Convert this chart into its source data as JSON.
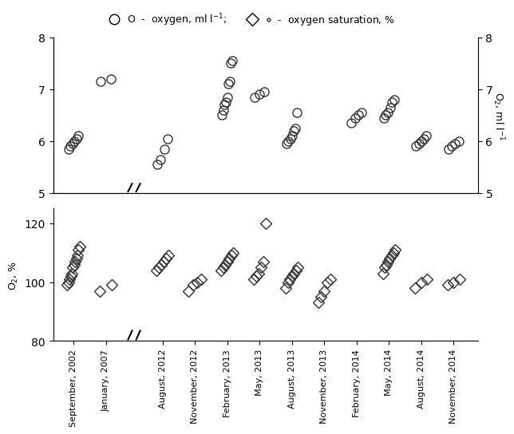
{
  "categories": [
    "September, 2002",
    "January, 2007",
    "August, 2012",
    "November, 2012",
    "February, 2013",
    "May, 2013",
    "August, 2013",
    "November, 2013",
    "February, 2014",
    "May, 2014",
    "August, 2014",
    "November, 2014"
  ],
  "x_positions": [
    0,
    1,
    2,
    3,
    4,
    5,
    6,
    7,
    8,
    9,
    10,
    11
  ],
  "oxygen_data": {
    "September, 2002": [
      5.85,
      5.9,
      5.95,
      6.0,
      6.05,
      6.1
    ],
    "January, 2007": [
      7.15,
      7.2
    ],
    "August, 2012": [
      5.55,
      5.65,
      5.85,
      6.05
    ],
    "November, 2012": [],
    "February, 2013": [
      6.5,
      6.6,
      6.7,
      6.75,
      6.85,
      7.1,
      7.15,
      7.5,
      7.55
    ],
    "May, 2013": [
      6.85,
      6.9,
      6.95
    ],
    "August, 2013": [
      5.95,
      6.0,
      6.05,
      6.1,
      6.2,
      6.25,
      6.55
    ],
    "November, 2013": [],
    "February, 2014": [
      6.35,
      6.45,
      6.5,
      6.55
    ],
    "May, 2014": [
      6.45,
      6.5,
      6.55,
      6.65,
      6.75,
      6.8
    ],
    "August, 2014": [
      5.9,
      5.95,
      6.0,
      6.05,
      6.1
    ],
    "November, 2014": [
      5.85,
      5.9,
      5.95,
      6.0
    ]
  },
  "saturation_data": {
    "September, 2002": [
      99,
      100,
      101,
      102,
      103,
      105,
      106,
      107,
      108,
      109,
      111,
      112
    ],
    "January, 2007": [
      97,
      99
    ],
    "August, 2012": [
      104,
      105,
      106,
      107,
      108,
      109
    ],
    "November, 2012": [
      97,
      99,
      100,
      101
    ],
    "February, 2013": [
      104,
      105,
      106,
      107,
      108,
      109,
      110
    ],
    "May, 2013": [
      101,
      102,
      103,
      105,
      107,
      120
    ],
    "August, 2013": [
      98,
      100,
      101,
      102,
      103,
      104,
      105
    ],
    "November, 2013": [
      93,
      95,
      97,
      100,
      101
    ],
    "February, 2014": [],
    "May, 2014": [
      103,
      105,
      106,
      107,
      108,
      109,
      110,
      111
    ],
    "August, 2014": [
      98,
      100,
      101
    ],
    "November, 2014": [
      99,
      100,
      101
    ]
  },
  "ylim_oxygen": [
    5.0,
    8.0
  ],
  "ylim_saturation": [
    80,
    125
  ],
  "yticks_oxygen": [
    5,
    6,
    7,
    8
  ],
  "yticks_saturation": [
    80,
    100,
    120
  ],
  "background_color": "#ffffff",
  "marker_color": "#333333",
  "marker_size": 8,
  "legend_circle_label": "O  -  oxygen, ml l⁻¹;",
  "legend_diamond_label": "◇  -  oxygen saturation, %"
}
